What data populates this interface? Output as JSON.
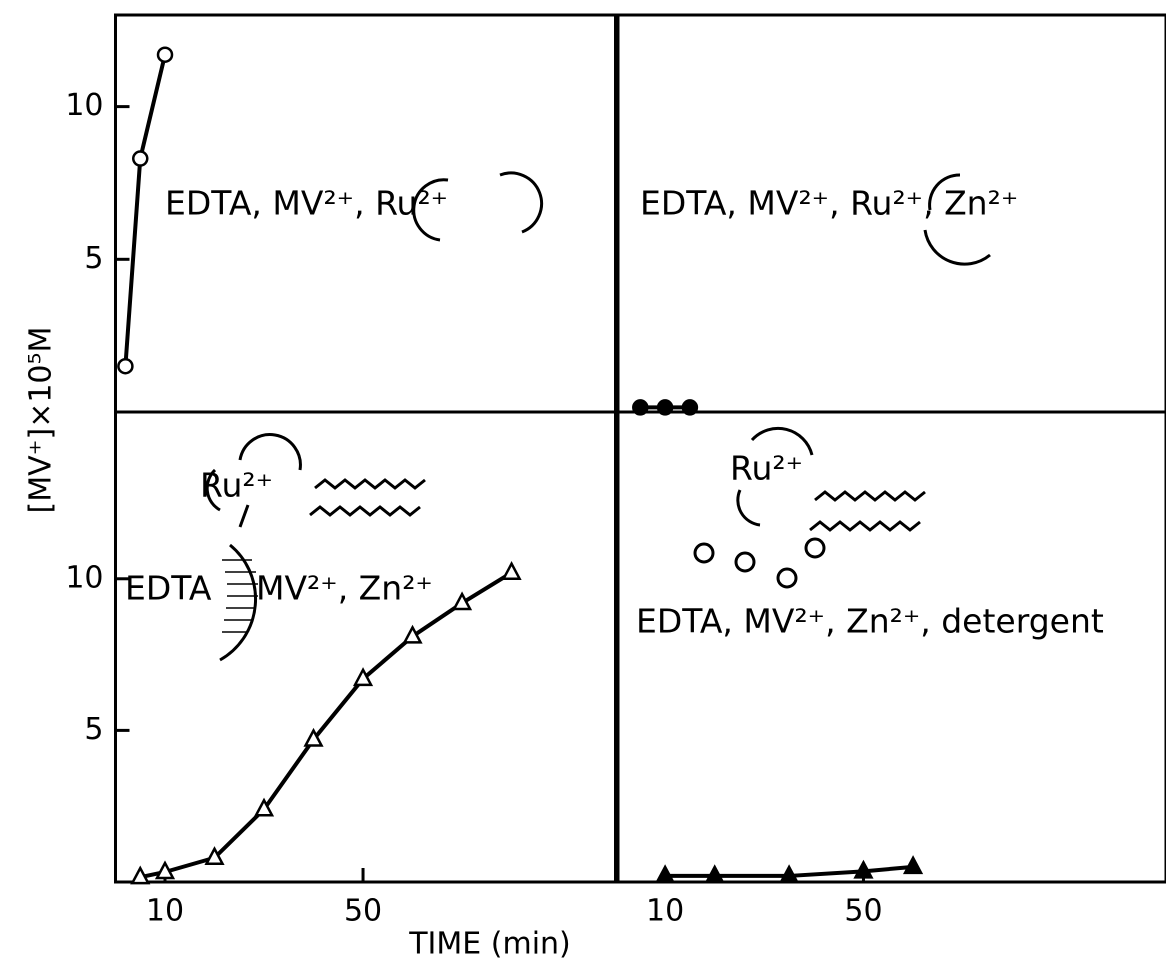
{
  "chart_data": [
    {
      "type": "line",
      "marker": "circle",
      "marker_fill": "none",
      "color": "#000",
      "x": [
        2,
        5,
        10
      ],
      "values": [
        1.5,
        8.3,
        11.7
      ],
      "xlim": [
        0,
        101.5
      ],
      "ylim": [
        0,
        13
      ],
      "yticks": [
        5,
        10
      ],
      "annotations": [
        "EDTA, MV²⁺, Ru²⁺"
      ]
    },
    {
      "type": "line",
      "marker": "circle",
      "marker_fill": "#000",
      "color": "#000",
      "x": [
        5,
        10,
        15
      ],
      "values": [
        0.15,
        0.15,
        0.15
      ],
      "xlim": [
        0,
        111
      ],
      "ylim": [
        0,
        13
      ],
      "annotations": [
        "EDTA, MV²⁺, Ru²⁺, Zn²⁺"
      ]
    },
    {
      "type": "line",
      "marker": "triangle",
      "marker_fill": "none",
      "color": "#000",
      "x": [
        5,
        10,
        20,
        30,
        40,
        50,
        60,
        70,
        80
      ],
      "values": [
        0.16,
        0.33,
        0.8,
        2.4,
        4.7,
        6.7,
        8.1,
        9.2,
        10.2
      ],
      "xlim": [
        0,
        101.5
      ],
      "ylim": [
        0,
        15.5
      ],
      "xticks": [
        10,
        50
      ],
      "yticks": [
        5,
        10
      ],
      "annotations": [
        "Ru²⁺",
        "EDTA",
        "MV²⁺, Zn²⁺"
      ]
    },
    {
      "type": "line",
      "marker": "triangle",
      "marker_fill": "#000",
      "color": "#000",
      "x": [
        10,
        20,
        35,
        50,
        60
      ],
      "values": [
        0.2,
        0.2,
        0.2,
        0.35,
        0.5
      ],
      "xlim": [
        0,
        111
      ],
      "ylim": [
        0,
        15.5
      ],
      "xticks": [
        10,
        50
      ],
      "annotations": [
        "Ru²⁺",
        "EDTA, MV²⁺, Zn²⁺, detergent"
      ]
    }
  ],
  "xlabel": "TIME (min)",
  "ylabel": "[MV⁺]×10⁵M"
}
